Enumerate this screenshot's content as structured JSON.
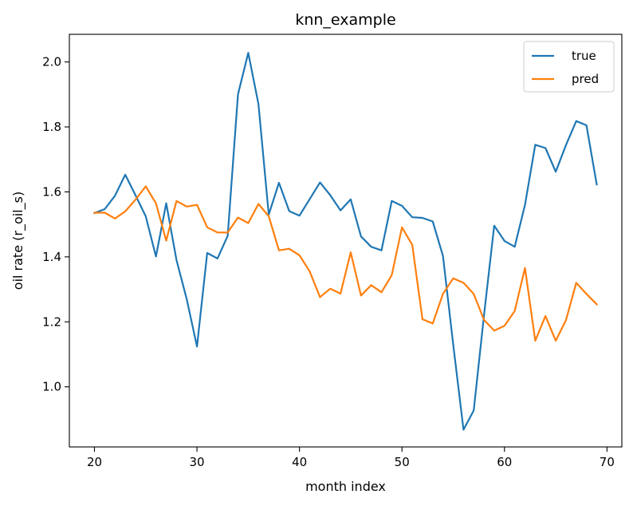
{
  "chart_data": {
    "type": "line",
    "title": "knn_example",
    "xlabel": "month index",
    "ylabel": "oil rate (r_oil_s)",
    "xlim": [
      17.55,
      71.45
    ],
    "ylim": [
      0.815,
      2.085
    ],
    "xticks": [
      20,
      30,
      40,
      50,
      60,
      70
    ],
    "yticks": [
      1.0,
      1.2,
      1.4,
      1.6,
      1.8,
      2.0
    ],
    "xtick_labels": [
      "20",
      "30",
      "40",
      "50",
      "60",
      "70"
    ],
    "ytick_labels": [
      "1.0",
      "1.2",
      "1.4",
      "1.6",
      "1.8",
      "2.0"
    ],
    "grid": false,
    "legend_position": "top-right",
    "x": [
      20,
      21,
      22,
      23,
      24,
      25,
      26,
      27,
      28,
      29,
      30,
      31,
      32,
      33,
      34,
      35,
      36,
      37,
      38,
      39,
      40,
      41,
      42,
      43,
      44,
      45,
      46,
      47,
      48,
      49,
      50,
      51,
      52,
      53,
      54,
      55,
      56,
      57,
      58,
      59,
      60,
      61,
      62,
      63,
      64,
      65,
      66,
      67,
      68,
      69
    ],
    "series": [
      {
        "name": "true",
        "color": "#1f77b4",
        "values": [
          1.535,
          1.547,
          1.588,
          1.653,
          1.59,
          1.525,
          1.401,
          1.565,
          1.39,
          1.27,
          1.124,
          1.412,
          1.395,
          1.465,
          1.9,
          2.028,
          1.87,
          1.53,
          1.628,
          1.541,
          1.527,
          1.578,
          1.629,
          1.59,
          1.543,
          1.577,
          1.463,
          1.431,
          1.42,
          1.572,
          1.557,
          1.522,
          1.52,
          1.509,
          1.403,
          1.13,
          0.868,
          0.927,
          1.22,
          1.496,
          1.449,
          1.431,
          1.56,
          1.745,
          1.735,
          1.662,
          1.744,
          1.818,
          1.805,
          1.623
        ]
      },
      {
        "name": "pred",
        "color": "#ff7f0e",
        "values": [
          1.536,
          1.536,
          1.518,
          1.54,
          1.576,
          1.617,
          1.565,
          1.45,
          1.572,
          1.555,
          1.56,
          1.491,
          1.475,
          1.475,
          1.521,
          1.504,
          1.563,
          1.525,
          1.42,
          1.425,
          1.405,
          1.355,
          1.276,
          1.302,
          1.287,
          1.414,
          1.281,
          1.313,
          1.291,
          1.344,
          1.491,
          1.437,
          1.208,
          1.195,
          1.286,
          1.334,
          1.32,
          1.286,
          1.206,
          1.173,
          1.188,
          1.233,
          1.366,
          1.142,
          1.218,
          1.142,
          1.205,
          1.32,
          1.286,
          1.254
        ]
      }
    ]
  }
}
